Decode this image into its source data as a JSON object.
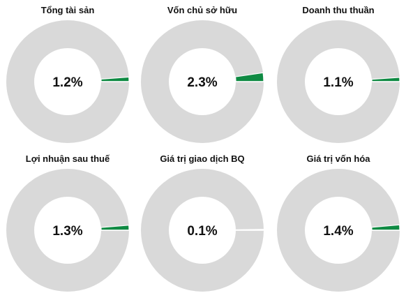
{
  "colors": {
    "share": "#0f8a43",
    "remainder": "#d9d9d9",
    "hole": "#ffffff",
    "text": "#111111"
  },
  "chart_data": [
    {
      "type": "pie",
      "title": "Tổng tài sản",
      "values": [
        1.2,
        98.8
      ],
      "center_label": "1.2%"
    },
    {
      "type": "pie",
      "title": "Vốn chủ sở hữu",
      "values": [
        2.3,
        97.7
      ],
      "center_label": "2.3%"
    },
    {
      "type": "pie",
      "title": "Doanh thu thuần",
      "values": [
        1.1,
        98.9
      ],
      "center_label": "1.1%"
    },
    {
      "type": "pie",
      "title": "Lợi nhuận sau thuế",
      "values": [
        1.3,
        98.7
      ],
      "center_label": "1.3%"
    },
    {
      "type": "pie",
      "title": "Giá trị giao dịch BQ",
      "values": [
        0.1,
        99.9
      ],
      "center_label": "0.1%"
    },
    {
      "type": "pie",
      "title": "Giá trị vốn hóa",
      "values": [
        1.4,
        98.6
      ],
      "center_label": "1.4%"
    }
  ]
}
